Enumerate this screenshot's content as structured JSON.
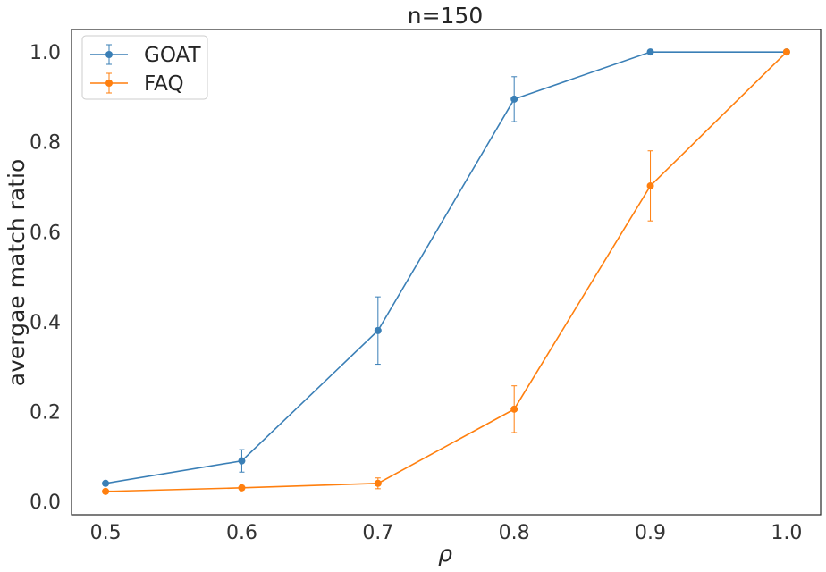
{
  "chart_data": {
    "type": "line",
    "title": "n=150",
    "xlabel": "ρ",
    "ylabel": "avergae match ratio",
    "x": [
      0.5,
      0.6,
      0.7,
      0.8,
      0.9,
      1.0
    ],
    "x_tick_labels": [
      "0.5",
      "0.6",
      "0.7",
      "0.8",
      "0.9",
      "1.0"
    ],
    "y_tick_values": [
      0.0,
      0.2,
      0.4,
      0.6,
      0.8,
      1.0
    ],
    "y_tick_labels": [
      "0.0",
      "0.2",
      "0.4",
      "0.6",
      "0.8",
      "1.0"
    ],
    "xlim": [
      0.475,
      1.025
    ],
    "ylim": [
      -0.03,
      1.05
    ],
    "grid": false,
    "legend_position": "top-left",
    "series": [
      {
        "name": "GOAT",
        "color": "#3a7fb6",
        "values": [
          0.04,
          0.09,
          0.38,
          0.895,
          1.0,
          1.0
        ],
        "errors": [
          0.0,
          0.025,
          0.075,
          0.05,
          0.0,
          0.0
        ]
      },
      {
        "name": "FAQ",
        "color": "#ff7f0e",
        "values": [
          0.022,
          0.03,
          0.04,
          0.205,
          0.702,
          1.0
        ],
        "errors": [
          0.0,
          0.005,
          0.012,
          0.052,
          0.078,
          0.0
        ]
      }
    ]
  }
}
